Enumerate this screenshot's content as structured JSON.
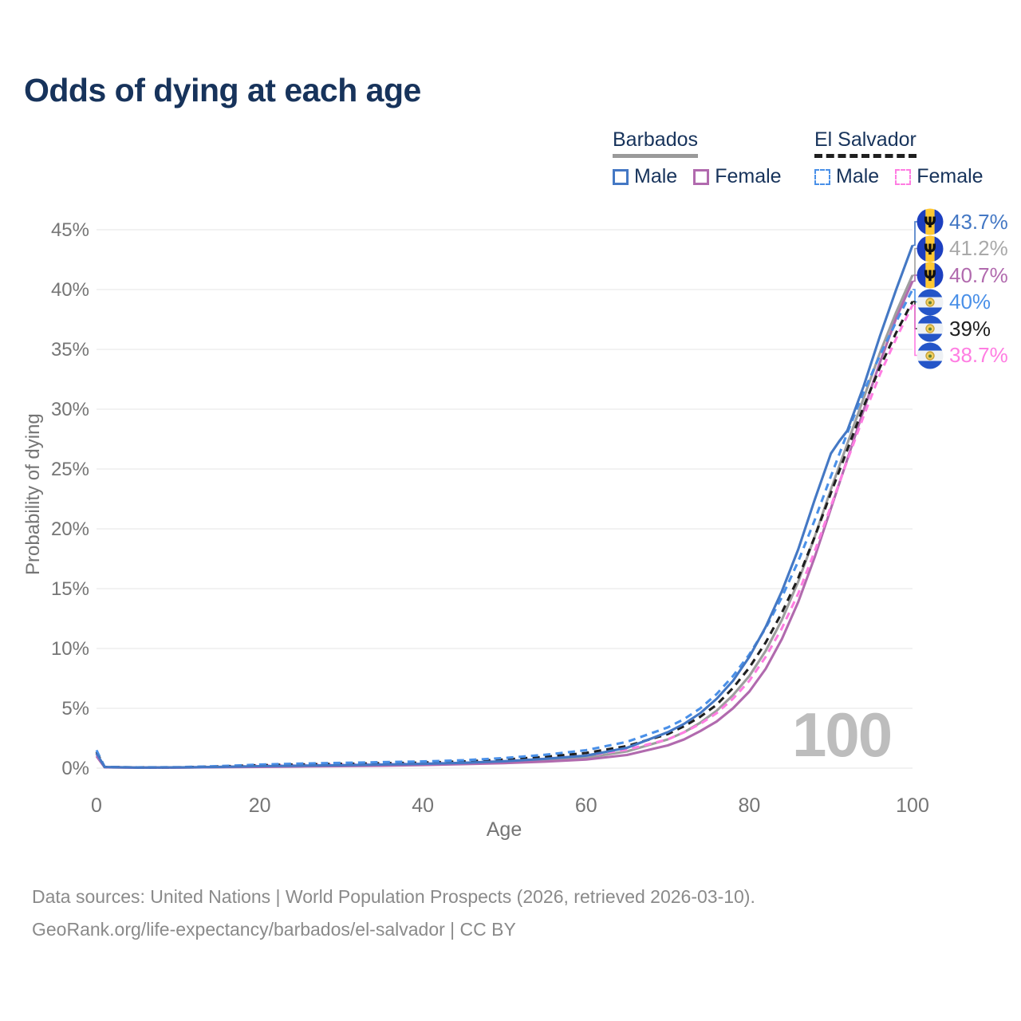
{
  "title": "Odds of dying at each age",
  "watermark_age": "100",
  "legend": {
    "groups": [
      {
        "name": "Barbados",
        "line_style": "solid",
        "header_underline_color": "#9a9a9a",
        "items": [
          {
            "label": "Male",
            "color": "#4478c4"
          },
          {
            "label": "Female",
            "color": "#b16aae"
          }
        ]
      },
      {
        "name": "El Salvador",
        "line_style": "dashed",
        "header_underline_color": "#1f1f1f",
        "items": [
          {
            "label": "Male",
            "color": "#4a90e8"
          },
          {
            "label": "Female",
            "color": "#ff7de2"
          }
        ]
      }
    ]
  },
  "axes": {
    "x": {
      "label": "Age",
      "ticks": [
        {
          "value": 0,
          "label": "0"
        },
        {
          "value": 20,
          "label": "20"
        },
        {
          "value": 40,
          "label": "40"
        },
        {
          "value": 60,
          "label": "60"
        },
        {
          "value": 80,
          "label": "80"
        },
        {
          "value": 100,
          "label": "100"
        }
      ]
    },
    "y": {
      "label": "Probability of dying",
      "ticks": [
        {
          "value": 0,
          "label": "0%"
        },
        {
          "value": 5,
          "label": "5%"
        },
        {
          "value": 10,
          "label": "10%"
        },
        {
          "value": 15,
          "label": "15%"
        },
        {
          "value": 20,
          "label": "20%"
        },
        {
          "value": 25,
          "label": "25%"
        },
        {
          "value": 30,
          "label": "30%"
        },
        {
          "value": 35,
          "label": "35%"
        },
        {
          "value": 40,
          "label": "40%"
        },
        {
          "value": 45,
          "label": "45%"
        }
      ]
    }
  },
  "footer": {
    "line1": "Data sources: United Nations | World Population Prospects (2026, retrieved 2026-03-10).",
    "line2": "GeoRank.org/life-expectancy/barbados/el-salvador | CC BY"
  },
  "chart_data": {
    "type": "line",
    "title": "Odds of dying at each age",
    "xlabel": "Age",
    "ylabel": "Probability of dying",
    "xlim": [
      0,
      100
    ],
    "ylim": [
      0,
      46
    ],
    "unit": "percent",
    "grid": "horizontal",
    "legend_position": "top-right",
    "series": [
      {
        "name": "Barbados Male",
        "country": "barbados",
        "sex": "male",
        "color": "#4478c4",
        "dash": false,
        "z": 6,
        "end_label": "43.7%",
        "end_value": 43.7,
        "points": [
          [
            0,
            1.25
          ],
          [
            1,
            0.09
          ],
          [
            5,
            0.05
          ],
          [
            10,
            0.06
          ],
          [
            15,
            0.11
          ],
          [
            20,
            0.17
          ],
          [
            25,
            0.21
          ],
          [
            30,
            0.25
          ],
          [
            35,
            0.3
          ],
          [
            40,
            0.36
          ],
          [
            45,
            0.45
          ],
          [
            50,
            0.58
          ],
          [
            55,
            0.78
          ],
          [
            60,
            1.05
          ],
          [
            65,
            1.7
          ],
          [
            70,
            3.0
          ],
          [
            72,
            3.7
          ],
          [
            74,
            4.6
          ],
          [
            76,
            5.8
          ],
          [
            78,
            7.3
          ],
          [
            80,
            9.3
          ],
          [
            82,
            11.8
          ],
          [
            84,
            14.8
          ],
          [
            86,
            18.3
          ],
          [
            88,
            22.4
          ],
          [
            90,
            26.3
          ],
          [
            91,
            27.3
          ],
          [
            92,
            28.2
          ],
          [
            94,
            31.9
          ],
          [
            96,
            36.1
          ],
          [
            98,
            40.0
          ],
          [
            100,
            43.7
          ]
        ]
      },
      {
        "name": "Barbados Both sexes",
        "country": "barbados",
        "sex": "both",
        "color": "#9e9e9e",
        "dash": false,
        "z": 1,
        "end_label": "41.2%",
        "end_value": 41.2,
        "points": [
          [
            0,
            1.15
          ],
          [
            1,
            0.08
          ],
          [
            5,
            0.05
          ],
          [
            10,
            0.05
          ],
          [
            15,
            0.09
          ],
          [
            20,
            0.14
          ],
          [
            25,
            0.18
          ],
          [
            30,
            0.21
          ],
          [
            35,
            0.26
          ],
          [
            40,
            0.31
          ],
          [
            45,
            0.39
          ],
          [
            50,
            0.5
          ],
          [
            55,
            0.67
          ],
          [
            60,
            0.88
          ],
          [
            65,
            1.4
          ],
          [
            70,
            2.4
          ],
          [
            72,
            3.0
          ],
          [
            74,
            3.8
          ],
          [
            76,
            4.8
          ],
          [
            78,
            6.1
          ],
          [
            80,
            7.7
          ],
          [
            82,
            9.8
          ],
          [
            84,
            12.4
          ],
          [
            86,
            15.6
          ],
          [
            88,
            19.3
          ],
          [
            90,
            23.3
          ],
          [
            92,
            27.1
          ],
          [
            94,
            30.9
          ],
          [
            96,
            34.7
          ],
          [
            98,
            38.1
          ],
          [
            100,
            41.2
          ]
        ]
      },
      {
        "name": "Barbados Female",
        "country": "barbados",
        "sex": "female",
        "color": "#b16aae",
        "dash": false,
        "z": 2,
        "end_label": "40.7%",
        "end_value": 40.7,
        "points": [
          [
            0,
            1.0
          ],
          [
            1,
            0.07
          ],
          [
            5,
            0.04
          ],
          [
            10,
            0.05
          ],
          [
            15,
            0.08
          ],
          [
            20,
            0.11
          ],
          [
            25,
            0.14
          ],
          [
            30,
            0.17
          ],
          [
            35,
            0.21
          ],
          [
            40,
            0.26
          ],
          [
            45,
            0.33
          ],
          [
            50,
            0.42
          ],
          [
            55,
            0.55
          ],
          [
            60,
            0.72
          ],
          [
            65,
            1.1
          ],
          [
            70,
            1.9
          ],
          [
            72,
            2.4
          ],
          [
            74,
            3.1
          ],
          [
            76,
            3.9
          ],
          [
            78,
            5.0
          ],
          [
            80,
            6.4
          ],
          [
            82,
            8.3
          ],
          [
            84,
            10.8
          ],
          [
            86,
            13.9
          ],
          [
            88,
            17.6
          ],
          [
            90,
            21.7
          ],
          [
            92,
            25.8
          ],
          [
            94,
            29.9
          ],
          [
            96,
            33.9
          ],
          [
            98,
            37.6
          ],
          [
            100,
            40.7
          ]
        ]
      },
      {
        "name": "El Salvador Male",
        "country": "el-salvador",
        "sex": "male",
        "color": "#4a90e8",
        "dash": true,
        "z": 5,
        "end_label": "40%",
        "end_value": 40.0,
        "points": [
          [
            0,
            1.5
          ],
          [
            1,
            0.11
          ],
          [
            5,
            0.07
          ],
          [
            10,
            0.08
          ],
          [
            15,
            0.17
          ],
          [
            20,
            0.3
          ],
          [
            25,
            0.38
          ],
          [
            30,
            0.44
          ],
          [
            35,
            0.5
          ],
          [
            40,
            0.56
          ],
          [
            45,
            0.66
          ],
          [
            50,
            0.85
          ],
          [
            55,
            1.12
          ],
          [
            60,
            1.5
          ],
          [
            65,
            2.2
          ],
          [
            70,
            3.4
          ],
          [
            72,
            4.1
          ],
          [
            74,
            5.0
          ],
          [
            76,
            6.2
          ],
          [
            78,
            7.7
          ],
          [
            80,
            9.5
          ],
          [
            82,
            11.7
          ],
          [
            84,
            14.3
          ],
          [
            86,
            17.3
          ],
          [
            88,
            20.7
          ],
          [
            90,
            24.4
          ],
          [
            92,
            28.0
          ],
          [
            94,
            31.4
          ],
          [
            96,
            34.5
          ],
          [
            98,
            37.3
          ],
          [
            100,
            40.0
          ]
        ]
      },
      {
        "name": "El Salvador Both sexes",
        "country": "el-salvador",
        "sex": "both",
        "color": "#1f1f1f",
        "dash": true,
        "z": 4,
        "end_label": "39%",
        "end_value": 39.0,
        "points": [
          [
            0,
            1.35
          ],
          [
            1,
            0.1
          ],
          [
            5,
            0.06
          ],
          [
            10,
            0.07
          ],
          [
            15,
            0.14
          ],
          [
            20,
            0.25
          ],
          [
            25,
            0.31
          ],
          [
            30,
            0.36
          ],
          [
            35,
            0.41
          ],
          [
            40,
            0.47
          ],
          [
            45,
            0.56
          ],
          [
            50,
            0.72
          ],
          [
            55,
            0.95
          ],
          [
            60,
            1.27
          ],
          [
            65,
            1.85
          ],
          [
            70,
            2.85
          ],
          [
            72,
            3.5
          ],
          [
            74,
            4.3
          ],
          [
            76,
            5.3
          ],
          [
            78,
            6.7
          ],
          [
            80,
            8.4
          ],
          [
            82,
            10.5
          ],
          [
            84,
            13.0
          ],
          [
            86,
            15.9
          ],
          [
            88,
            19.3
          ],
          [
            90,
            23.0
          ],
          [
            92,
            26.6
          ],
          [
            94,
            30.2
          ],
          [
            96,
            33.5
          ],
          [
            98,
            36.4
          ],
          [
            100,
            39.0
          ]
        ]
      },
      {
        "name": "El Salvador Female",
        "country": "el-salvador",
        "sex": "female",
        "color": "#ff7de2",
        "dash": true,
        "z": 3,
        "end_label": "38.7%",
        "end_value": 38.7,
        "points": [
          [
            0,
            1.2
          ],
          [
            1,
            0.09
          ],
          [
            5,
            0.05
          ],
          [
            10,
            0.06
          ],
          [
            15,
            0.11
          ],
          [
            20,
            0.2
          ],
          [
            25,
            0.25
          ],
          [
            30,
            0.29
          ],
          [
            35,
            0.33
          ],
          [
            40,
            0.38
          ],
          [
            45,
            0.46
          ],
          [
            50,
            0.6
          ],
          [
            55,
            0.79
          ],
          [
            60,
            1.05
          ],
          [
            65,
            1.55
          ],
          [
            70,
            2.4
          ],
          [
            72,
            3.0
          ],
          [
            74,
            3.7
          ],
          [
            76,
            4.6
          ],
          [
            78,
            5.8
          ],
          [
            80,
            7.3
          ],
          [
            82,
            9.3
          ],
          [
            84,
            11.7
          ],
          [
            86,
            14.6
          ],
          [
            88,
            18.1
          ],
          [
            90,
            21.9
          ],
          [
            92,
            25.7
          ],
          [
            94,
            29.4
          ],
          [
            96,
            32.9
          ],
          [
            98,
            35.9
          ],
          [
            100,
            38.7
          ]
        ]
      }
    ]
  }
}
